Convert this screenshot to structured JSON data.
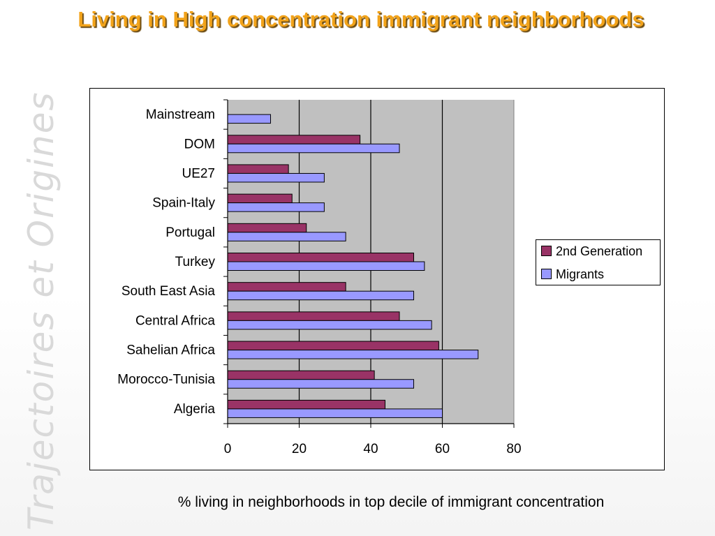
{
  "slide": {
    "title": "Living in High concentration immigrant neighborhoods",
    "watermark": "Trajectoires et Origines",
    "caption": "% living in neighborhoods in top decile of immigrant concentration"
  },
  "colors": {
    "title": "#f2a31a",
    "second_generation": "#993366",
    "migrants": "#9999ff",
    "plot_background": "#c0c0c0"
  },
  "chart_data": {
    "type": "bar",
    "orientation": "horizontal",
    "categories": [
      "Mainstream",
      "DOM",
      "UE27",
      "Spain-Italy",
      "Portugal",
      "Turkey",
      "South East Asia",
      "Central Africa",
      "Sahelian Africa",
      "Morocco-Tunisia",
      "Algeria"
    ],
    "series": [
      {
        "name": "2nd Generation",
        "values": [
          null,
          37,
          17,
          18,
          22,
          52,
          33,
          48,
          59,
          41,
          44
        ]
      },
      {
        "name": "Migrants",
        "values": [
          12,
          48,
          27,
          27,
          33,
          55,
          52,
          57,
          70,
          52,
          60
        ]
      }
    ],
    "xlim": [
      0,
      80
    ],
    "xticks": [
      "0",
      "20",
      "40",
      "60",
      "80"
    ],
    "xlabel": "",
    "ylabel": "",
    "grid": "vertical",
    "legend_position": "right"
  }
}
